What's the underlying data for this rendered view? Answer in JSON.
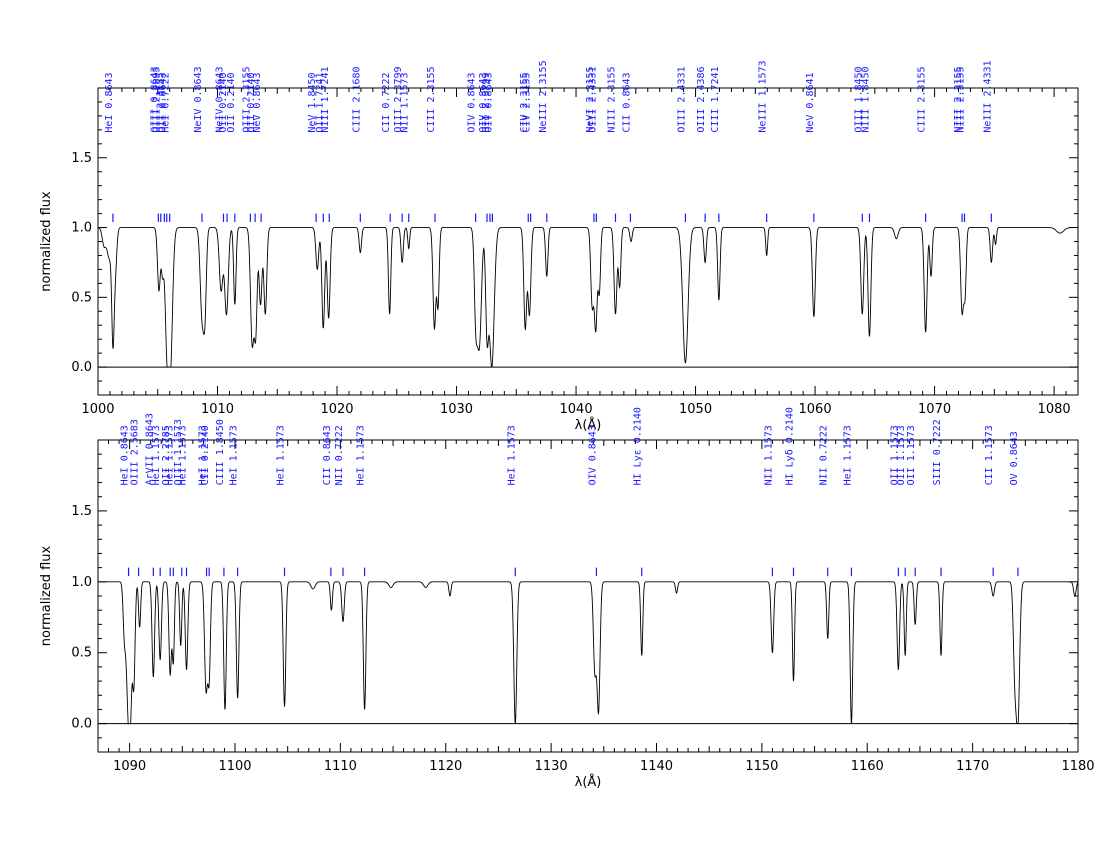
{
  "chart_data": [
    {
      "type": "line",
      "xlabel": "λ(Å)",
      "ylabel": "normalized flux",
      "xlim": [
        1000,
        1082
      ],
      "ylim": [
        -0.2,
        2.0
      ],
      "xticks": [
        1000,
        1010,
        1020,
        1030,
        1040,
        1050,
        1060,
        1070,
        1080
      ],
      "yticks": [
        0.0,
        0.5,
        1.0,
        1.5
      ],
      "ytick_labels": [
        "0.0",
        "0.5",
        "1.0",
        "1.5"
      ],
      "continuum": 1.0,
      "absorption_features": [
        {
          "x": 1000.5,
          "depth": 0.12,
          "width": 0.15
        },
        {
          "x": 1000.95,
          "depth": 0.22,
          "width": 0.2
        },
        {
          "x": 1001.25,
          "depth": 0.72,
          "width": 0.1
        },
        {
          "x": 1001.45,
          "depth": 0.3,
          "width": 0.12
        },
        {
          "x": 1005.1,
          "depth": 0.45,
          "width": 0.12
        },
        {
          "x": 1005.4,
          "depth": 0.3,
          "width": 0.1
        },
        {
          "x": 1005.75,
          "depth": 0.7,
          "width": 0.15
        },
        {
          "x": 1006.05,
          "depth": 1.0,
          "width": 0.18
        },
        {
          "x": 1008.7,
          "depth": 0.62,
          "width": 0.15
        },
        {
          "x": 1008.95,
          "depth": 0.55,
          "width": 0.12
        },
        {
          "x": 1010.3,
          "depth": 0.45,
          "width": 0.15
        },
        {
          "x": 1010.75,
          "depth": 0.62,
          "width": 0.15
        },
        {
          "x": 1011.45,
          "depth": 0.55,
          "width": 0.1
        },
        {
          "x": 1012.9,
          "depth": 0.82,
          "width": 0.14
        },
        {
          "x": 1013.2,
          "depth": 0.72,
          "width": 0.12
        },
        {
          "x": 1013.6,
          "depth": 0.55,
          "width": 0.12
        },
        {
          "x": 1014.0,
          "depth": 0.62,
          "width": 0.12
        },
        {
          "x": 1018.35,
          "depth": 0.3,
          "width": 0.12
        },
        {
          "x": 1018.85,
          "depth": 0.72,
          "width": 0.12
        },
        {
          "x": 1019.3,
          "depth": 0.65,
          "width": 0.12
        },
        {
          "x": 1021.95,
          "depth": 0.18,
          "width": 0.1
        },
        {
          "x": 1024.4,
          "depth": 0.62,
          "width": 0.1
        },
        {
          "x": 1025.45,
          "depth": 0.25,
          "width": 0.1
        },
        {
          "x": 1026.0,
          "depth": 0.15,
          "width": 0.08
        },
        {
          "x": 1028.15,
          "depth": 0.72,
          "width": 0.12
        },
        {
          "x": 1028.45,
          "depth": 0.55,
          "width": 0.1
        },
        {
          "x": 1031.6,
          "depth": 0.55,
          "width": 0.12
        },
        {
          "x": 1031.9,
          "depth": 0.85,
          "width": 0.18
        },
        {
          "x": 1032.55,
          "depth": 0.7,
          "width": 0.12
        },
        {
          "x": 1032.95,
          "depth": 1.0,
          "width": 0.2
        },
        {
          "x": 1035.75,
          "depth": 0.72,
          "width": 0.12
        },
        {
          "x": 1036.1,
          "depth": 0.62,
          "width": 0.12
        },
        {
          "x": 1037.55,
          "depth": 0.35,
          "width": 0.1
        },
        {
          "x": 1041.35,
          "depth": 0.55,
          "width": 0.12
        },
        {
          "x": 1041.65,
          "depth": 0.72,
          "width": 0.12
        },
        {
          "x": 1041.95,
          "depth": 0.45,
          "width": 0.1
        },
        {
          "x": 1043.3,
          "depth": 0.62,
          "width": 0.12
        },
        {
          "x": 1043.65,
          "depth": 0.42,
          "width": 0.1
        },
        {
          "x": 1044.6,
          "depth": 0.1,
          "width": 0.1
        },
        {
          "x": 1049.15,
          "depth": 0.97,
          "width": 0.22
        },
        {
          "x": 1050.8,
          "depth": 0.25,
          "width": 0.1
        },
        {
          "x": 1051.95,
          "depth": 0.52,
          "width": 0.1
        },
        {
          "x": 1055.95,
          "depth": 0.2,
          "width": 0.08
        },
        {
          "x": 1059.9,
          "depth": 0.64,
          "width": 0.12
        },
        {
          "x": 1063.95,
          "depth": 0.62,
          "width": 0.12
        },
        {
          "x": 1064.55,
          "depth": 0.78,
          "width": 0.12
        },
        {
          "x": 1066.8,
          "depth": 0.08,
          "width": 0.15
        },
        {
          "x": 1069.25,
          "depth": 0.75,
          "width": 0.12
        },
        {
          "x": 1069.7,
          "depth": 0.35,
          "width": 0.1
        },
        {
          "x": 1072.3,
          "depth": 0.6,
          "width": 0.12
        },
        {
          "x": 1072.55,
          "depth": 0.45,
          "width": 0.1
        },
        {
          "x": 1074.75,
          "depth": 0.25,
          "width": 0.1
        },
        {
          "x": 1075.1,
          "depth": 0.12,
          "width": 0.08
        },
        {
          "x": 1080.5,
          "depth": 0.04,
          "width": 0.3
        }
      ],
      "line_ids": [
        {
          "x": 1001.25,
          "label": "HeI  0.8643"
        },
        {
          "x": 1005.05,
          "label": "OIII 0.8643"
        },
        {
          "x": 1005.25,
          "label": "OIII 2.2895"
        },
        {
          "x": 1005.55,
          "label": "OII  2.3155"
        },
        {
          "x": 1005.75,
          "label": "OII  0.8643"
        },
        {
          "x": 1006.0,
          "label": "HeI  0.7222"
        },
        {
          "x": 1008.7,
          "label": "NeIV 0.8643"
        },
        {
          "x": 1010.5,
          "label": "NeIV 0.8643"
        },
        {
          "x": 1010.8,
          "label": "OII  0.2140"
        },
        {
          "x": 1011.45,
          "label": "OII  0.2140"
        },
        {
          "x": 1012.75,
          "label": "OIII 2.3155"
        },
        {
          "x": 1013.15,
          "label": "OII  0.2140"
        },
        {
          "x": 1013.65,
          "label": "NeV  0.8643"
        },
        {
          "x": 1018.25,
          "label": "NeV  1.8450"
        },
        {
          "x": 1018.85,
          "label": "OII  1.7241"
        },
        {
          "x": 1019.35,
          "label": "NIII 1.7241"
        },
        {
          "x": 1021.95,
          "label": "CIII 2.1680"
        },
        {
          "x": 1024.45,
          "label": "CII  0.7222"
        },
        {
          "x": 1025.45,
          "label": "OIII 2.3799"
        },
        {
          "x": 1026.0,
          "label": "NII  1.1573"
        },
        {
          "x": 1028.2,
          "label": "CIII 2.3155"
        },
        {
          "x": 1031.6,
          "label": "OIV  0.8643"
        },
        {
          "x": 1032.55,
          "label": "OIV  0.8643"
        },
        {
          "x": 1032.8,
          "label": "OII  2.3799"
        },
        {
          "x": 1033.0,
          "label": "OIV  0.8643"
        },
        {
          "x": 1036.0,
          "label": "CIV  2.3155"
        },
        {
          "x": 1036.2,
          "label": "CIV  2.3155"
        },
        {
          "x": 1037.55,
          "label": "NeIII 2.3155"
        },
        {
          "x": 1041.5,
          "label": "NeVI 2.3155"
        },
        {
          "x": 1041.7,
          "label": "OIII 2.4331"
        },
        {
          "x": 1043.3,
          "label": "NIII 2.3155"
        },
        {
          "x": 1044.55,
          "label": "CII  0.8643"
        },
        {
          "x": 1049.15,
          "label": "OIII 2.4331"
        },
        {
          "x": 1050.8,
          "label": "OIII 2.4386"
        },
        {
          "x": 1051.95,
          "label": "CIII 1.7241"
        },
        {
          "x": 1055.95,
          "label": "NeIII  1.1573"
        },
        {
          "x": 1059.9,
          "label": "NeV  0.8641"
        },
        {
          "x": 1063.95,
          "label": "OIII 1.8450"
        },
        {
          "x": 1064.55,
          "label": "NIII 1.8450"
        },
        {
          "x": 1069.25,
          "label": "CIII 2.3155"
        },
        {
          "x": 1072.3,
          "label": "NIII 2.3155"
        },
        {
          "x": 1072.5,
          "label": "NIII 2.3155"
        },
        {
          "x": 1074.75,
          "label": "NeIII 2.4331"
        }
      ]
    },
    {
      "type": "line",
      "xlabel": "λ(Å)",
      "ylabel": "normalized flux",
      "xlim": [
        1087,
        1180
      ],
      "ylim": [
        -0.2,
        2.0
      ],
      "xticks": [
        1090,
        1100,
        1110,
        1120,
        1130,
        1140,
        1150,
        1160,
        1170,
        1180
      ],
      "yticks": [
        0.0,
        0.5,
        1.0,
        1.5
      ],
      "ytick_labels": [
        "0.0",
        "0.5",
        "1.0",
        "1.5"
      ],
      "continuum": 1.0,
      "absorption_features": [
        {
          "x": 1089.5,
          "depth": 0.35,
          "width": 0.12
        },
        {
          "x": 1089.8,
          "depth": 0.62,
          "width": 0.15
        },
        {
          "x": 1090.05,
          "depth": 0.95,
          "width": 0.15
        },
        {
          "x": 1090.4,
          "depth": 0.7,
          "width": 0.12
        },
        {
          "x": 1090.95,
          "depth": 0.32,
          "width": 0.1
        },
        {
          "x": 1092.25,
          "depth": 0.67,
          "width": 0.12
        },
        {
          "x": 1092.9,
          "depth": 0.55,
          "width": 0.12
        },
        {
          "x": 1093.85,
          "depth": 0.65,
          "width": 0.12
        },
        {
          "x": 1094.15,
          "depth": 0.55,
          "width": 0.1
        },
        {
          "x": 1094.85,
          "depth": 0.45,
          "width": 0.1
        },
        {
          "x": 1095.4,
          "depth": 0.62,
          "width": 0.12
        },
        {
          "x": 1097.25,
          "depth": 0.75,
          "width": 0.14
        },
        {
          "x": 1097.55,
          "depth": 0.65,
          "width": 0.12
        },
        {
          "x": 1099.05,
          "depth": 0.9,
          "width": 0.12
        },
        {
          "x": 1100.25,
          "depth": 0.82,
          "width": 0.12
        },
        {
          "x": 1104.7,
          "depth": 0.88,
          "width": 0.12
        },
        {
          "x": 1107.4,
          "depth": 0.05,
          "width": 0.2
        },
        {
          "x": 1109.15,
          "depth": 0.2,
          "width": 0.1
        },
        {
          "x": 1110.25,
          "depth": 0.28,
          "width": 0.12
        },
        {
          "x": 1112.3,
          "depth": 0.9,
          "width": 0.12
        },
        {
          "x": 1114.8,
          "depth": 0.04,
          "width": 0.2
        },
        {
          "x": 1118.1,
          "depth": 0.04,
          "width": 0.2
        },
        {
          "x": 1120.4,
          "depth": 0.1,
          "width": 0.1
        },
        {
          "x": 1126.6,
          "depth": 1.0,
          "width": 0.14
        },
        {
          "x": 1134.15,
          "depth": 0.62,
          "width": 0.14
        },
        {
          "x": 1134.5,
          "depth": 0.9,
          "width": 0.14
        },
        {
          "x": 1138.6,
          "depth": 0.52,
          "width": 0.1
        },
        {
          "x": 1141.9,
          "depth": 0.08,
          "width": 0.1
        },
        {
          "x": 1151.0,
          "depth": 0.5,
          "width": 0.12
        },
        {
          "x": 1153.0,
          "depth": 0.7,
          "width": 0.1
        },
        {
          "x": 1156.25,
          "depth": 0.4,
          "width": 0.1
        },
        {
          "x": 1158.5,
          "depth": 1.0,
          "width": 0.12
        },
        {
          "x": 1162.95,
          "depth": 0.62,
          "width": 0.12
        },
        {
          "x": 1163.6,
          "depth": 0.52,
          "width": 0.1
        },
        {
          "x": 1164.55,
          "depth": 0.3,
          "width": 0.1
        },
        {
          "x": 1167.0,
          "depth": 0.52,
          "width": 0.1
        },
        {
          "x": 1171.95,
          "depth": 0.1,
          "width": 0.12
        },
        {
          "x": 1174.0,
          "depth": 0.6,
          "width": 0.14
        },
        {
          "x": 1174.3,
          "depth": 0.97,
          "width": 0.16
        },
        {
          "x": 1179.7,
          "depth": 0.1,
          "width": 0.12
        }
      ],
      "line_ids": [
        {
          "x": 1089.9,
          "label": "HeI  0.8643"
        },
        {
          "x": 1090.85,
          "label": "OIII 2.5683"
        },
        {
          "x": 1092.25,
          "label": "ArVII 0.8643"
        },
        {
          "x": 1092.9,
          "label": "HeI  1.1573"
        },
        {
          "x": 1093.85,
          "label": "OII  2.2785"
        },
        {
          "x": 1094.15,
          "label": "HeI  1.1573"
        },
        {
          "x": 1094.95,
          "label": "OIII 1.1573"
        },
        {
          "x": 1095.4,
          "label": "HeI  1.1573"
        },
        {
          "x": 1097.3,
          "label": "HeI  1.1573"
        },
        {
          "x": 1097.55,
          "label": "CII  0.2140"
        },
        {
          "x": 1098.95,
          "label": "CIII 1.8450"
        },
        {
          "x": 1100.25,
          "label": "HeI  1.1573"
        },
        {
          "x": 1104.7,
          "label": "HeI  1.1573"
        },
        {
          "x": 1109.1,
          "label": "CII  0.8643"
        },
        {
          "x": 1110.25,
          "label": "NII  0.7222"
        },
        {
          "x": 1112.3,
          "label": "HeI  1.1573"
        },
        {
          "x": 1126.6,
          "label": "HeI  1.1573"
        },
        {
          "x": 1134.3,
          "label": "OIV  0.8643"
        },
        {
          "x": 1138.6,
          "label": "HI  Lyε  0.2140"
        },
        {
          "x": 1151.0,
          "label": "NII  1.1573"
        },
        {
          "x": 1153.0,
          "label": "HI  Lyδ  0.2140"
        },
        {
          "x": 1156.25,
          "label": "NII  0.7222"
        },
        {
          "x": 1158.5,
          "label": "HeI  1.1573"
        },
        {
          "x": 1162.95,
          "label": "OII  1.1573"
        },
        {
          "x": 1163.6,
          "label": "OII  1.1573"
        },
        {
          "x": 1164.55,
          "label": "OII  1.1573"
        },
        {
          "x": 1167.0,
          "label": "SIII 0.7222"
        },
        {
          "x": 1171.95,
          "label": "CII  1.1573"
        },
        {
          "x": 1174.3,
          "label": "OV  0.8643"
        }
      ]
    }
  ]
}
